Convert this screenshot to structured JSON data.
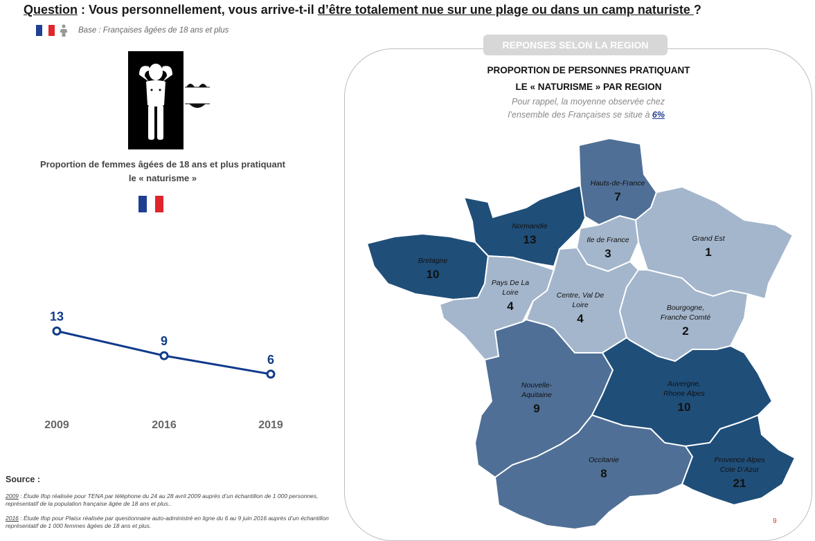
{
  "header": {
    "question_label": "Question",
    "question_sep": " : Vous personnellement, vous arrive-t-il ",
    "question_focus": "d’être totalement nue sur une plage ou dans un camp naturiste ",
    "question_end": " ?",
    "base": "Base : Françaises âgées de 18 ans et plus"
  },
  "left_title_line1": "Proportion de femmes âgées de 18 ans et plus pratiquant",
  "left_title_line2": "le « naturisme »",
  "colors": {
    "flag_blue": "#1f3f93",
    "flag_red": "#e0252c",
    "line": "#0f3a8a",
    "dark": "#1f4e79",
    "mid": "#4f6f96",
    "light": "#a4b6cc"
  },
  "chart_data": [
    {
      "type": "line",
      "title": "Proportion de femmes âgées de 18 ans et plus pratiquant le « naturisme »",
      "categories": [
        "2009",
        "2016",
        "2019"
      ],
      "series": [
        {
          "values": [
            13,
            9,
            6
          ]
        }
      ]
    },
    {
      "type": "choropleth",
      "title": "PROPORTION DE PERSONNES PRATIQUANT LE « NATURISME » PAR REGION",
      "regions": [
        {
          "name": "Hauts-de-France",
          "value": 7,
          "shade": "mid"
        },
        {
          "name": "Normandie",
          "value": 13,
          "shade": "dark"
        },
        {
          "name": "Ile de France",
          "value": 3,
          "shade": "light"
        },
        {
          "name": "Grand Est",
          "value": 1,
          "shade": "light"
        },
        {
          "name": "Bretagne",
          "value": 10,
          "shade": "dark"
        },
        {
          "name": "Pays De La Loire",
          "value": 4,
          "shade": "light"
        },
        {
          "name": "Centre, Val De Loire",
          "value": 4,
          "shade": "light"
        },
        {
          "name": "Bourgogne, Franche Comté",
          "value": 2,
          "shade": "light"
        },
        {
          "name": "Nouvelle-Aquitaine",
          "value": 9,
          "shade": "mid"
        },
        {
          "name": "Auvergne, Rhone Alpes",
          "value": 10,
          "shade": "dark"
        },
        {
          "name": "Occitanie",
          "value": 8,
          "shade": "mid"
        },
        {
          "name": "Provence Alpes Cote D’Azur",
          "value": 21,
          "shade": "dark"
        }
      ]
    }
  ],
  "panel": {
    "tab": "REPONSES SELON  LA REGION",
    "title_line1": "PROPORTION DE PERSONNES PRATIQUANT",
    "title_line2": "LE « NATURISME »  PAR REGION",
    "note_line1": "Pour rappel, la moyenne observée chez",
    "note_line2_pre": "l’ensemble des Françaises se situe à ",
    "note_value": "6%"
  },
  "map_labels": {
    "hdf": [
      "Hauts-de-France"
    ],
    "nor": [
      "Normandie"
    ],
    "idf": [
      "Ile de France"
    ],
    "ge": [
      "Grand Est"
    ],
    "bre": [
      "Bretagne"
    ],
    "pdl": [
      "Pays De La",
      "Loire"
    ],
    "cvl": [
      "Centre, Val De",
      "Loire"
    ],
    "bfc": [
      "Bourgogne,",
      "Franche Comté"
    ],
    "na": [
      "Nouvelle-",
      "Aquitaine"
    ],
    "ara": [
      "Auvergne,",
      "Rhone Alpes"
    ],
    "occ": [
      "Occitanie"
    ],
    "paca": [
      "Provence Alpes",
      "Cote D’Azur"
    ]
  },
  "sources": {
    "title": "Source :",
    "s1_year": "2009",
    "s1_text": " : Étude Ifop réalisée pour TENA par téléphone du 24 au 28 avril 2009 auprès d’un échantillon de 1 000 personnes, représentatif de la population française âgée de 18 ans et plus..",
    "s2_year": "2016",
    "s2_text": " : Étude Ifop pour Plaisx réalisée par questionnaire auto-administré en ligne du 6 au 9 juin 2016 auprès d’un échantillon représentatif de 1 000 femmes âgées de 18 ans et plus."
  },
  "page_number": "9"
}
